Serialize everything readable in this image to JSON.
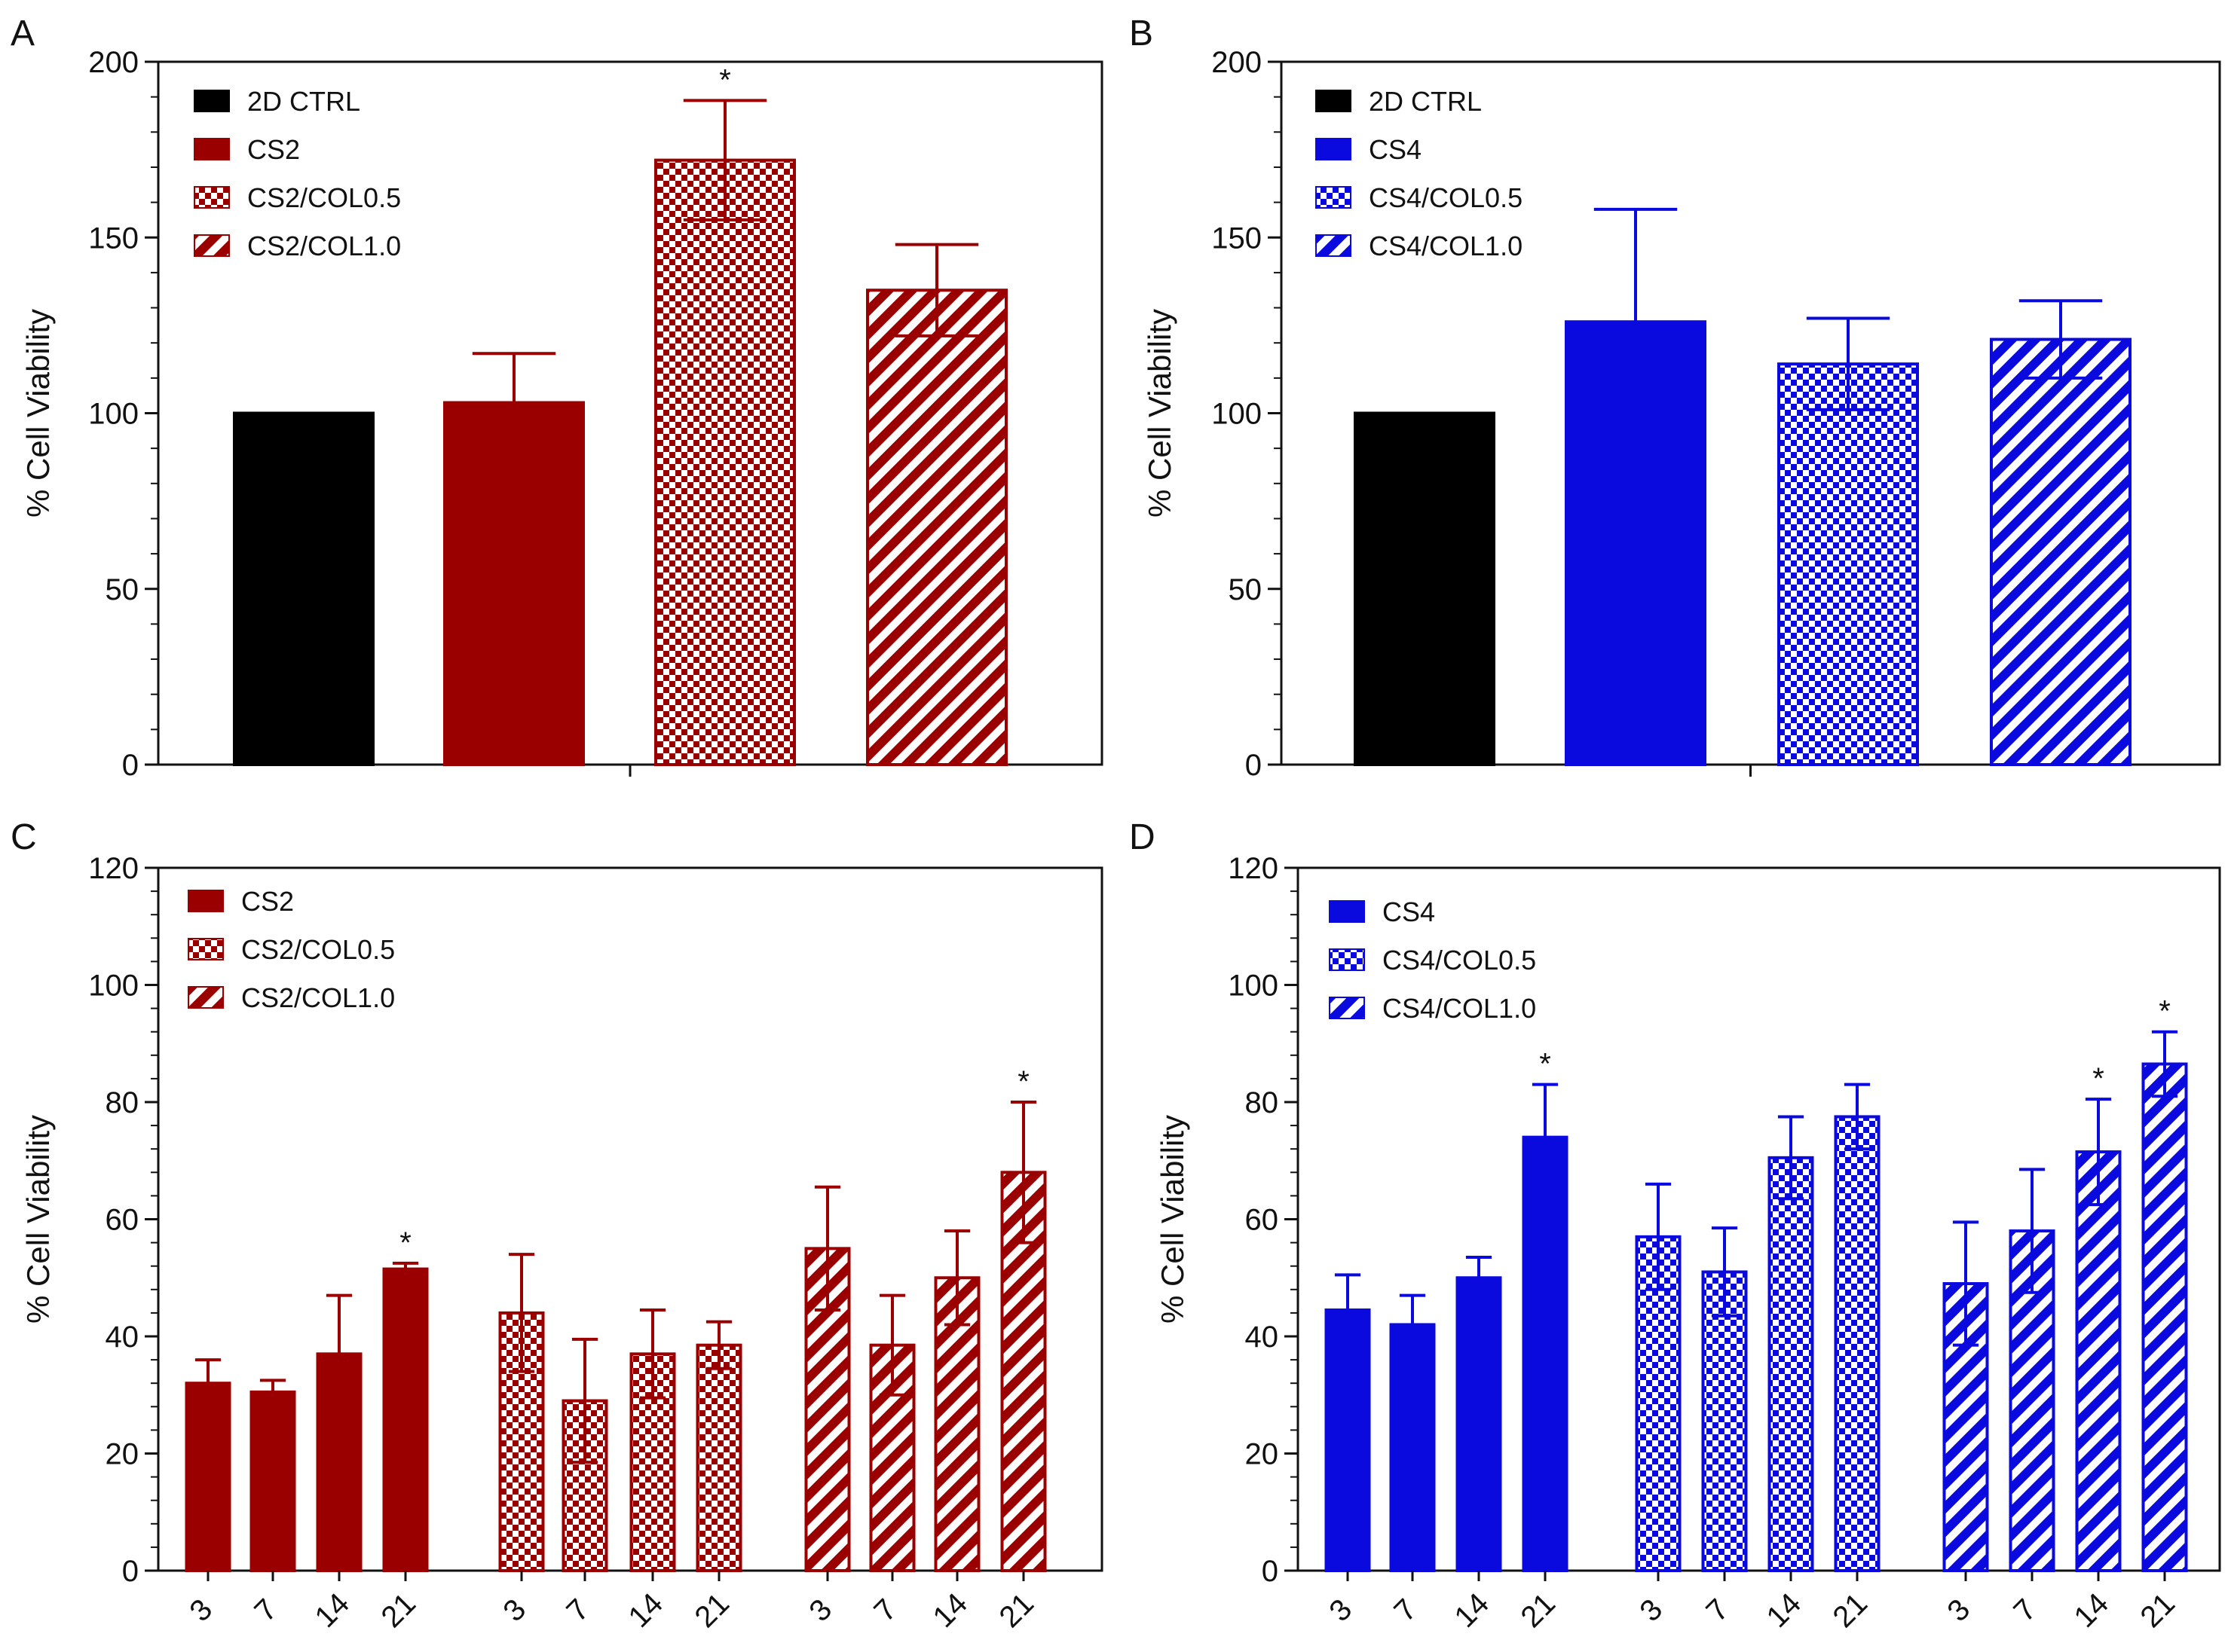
{
  "colors": {
    "ctrl": "#000000",
    "cs2": "#9b0000",
    "cs4": "#0a0adf",
    "background": "#ffffff"
  },
  "chart_data": [
    {
      "panel": "A",
      "type": "bar",
      "ylabel": "% Cell Viability",
      "ylim": [
        0,
        200
      ],
      "yticks": [
        0,
        50,
        100,
        150,
        200
      ],
      "legend_position": "top-left",
      "series": [
        {
          "name": "2D CTRL",
          "value": 100,
          "error": 0,
          "pattern": "solid",
          "color": "#000000",
          "sig": ""
        },
        {
          "name": "CS2",
          "value": 103,
          "error": 14,
          "pattern": "solid",
          "color": "#9b0000",
          "sig": ""
        },
        {
          "name": "CS2/COL0.5",
          "value": 172,
          "error": 17,
          "pattern": "checker",
          "color": "#9b0000",
          "sig": "*"
        },
        {
          "name": "CS2/COL1.0",
          "value": 135,
          "error": 13,
          "pattern": "stripe",
          "color": "#9b0000",
          "sig": ""
        }
      ]
    },
    {
      "panel": "B",
      "type": "bar",
      "ylabel": "% Cell Viability",
      "ylim": [
        0,
        200
      ],
      "yticks": [
        0,
        50,
        100,
        150,
        200
      ],
      "legend_position": "top-left",
      "series": [
        {
          "name": "2D CTRL",
          "value": 100,
          "error": 0,
          "pattern": "solid",
          "color": "#000000",
          "sig": ""
        },
        {
          "name": "CS4",
          "value": 126,
          "error": 32,
          "pattern": "solid",
          "color": "#0a0adf",
          "sig": ""
        },
        {
          "name": "CS4/COL0.5",
          "value": 114,
          "error": 13,
          "pattern": "checker",
          "color": "#0a0adf",
          "sig": ""
        },
        {
          "name": "CS4/COL1.0",
          "value": 121,
          "error": 11,
          "pattern": "stripe",
          "color": "#0a0adf",
          "sig": ""
        }
      ]
    },
    {
      "panel": "C",
      "type": "bar",
      "ylabel": "% Cell Viability",
      "ylim": [
        0,
        120
      ],
      "yticks": [
        0,
        20,
        40,
        60,
        80,
        100,
        120
      ],
      "categories": [
        "3",
        "7",
        "14",
        "21"
      ],
      "legend_position": "top-left",
      "series": [
        {
          "name": "CS2",
          "pattern": "solid",
          "color": "#9b0000",
          "values": [
            32,
            30.5,
            37,
            51.5
          ],
          "errors": [
            4,
            2,
            10,
            1
          ],
          "sig": [
            "",
            "",
            "",
            "*"
          ]
        },
        {
          "name": "CS2/COL0.5",
          "pattern": "checker",
          "color": "#9b0000",
          "values": [
            44,
            29,
            37,
            38.5
          ],
          "errors": [
            10,
            10.5,
            7.5,
            4
          ],
          "sig": [
            "",
            "",
            "",
            ""
          ]
        },
        {
          "name": "CS2/COL1.0",
          "pattern": "stripe",
          "color": "#9b0000",
          "values": [
            55,
            38.5,
            50,
            68
          ],
          "errors": [
            10.5,
            8.5,
            8,
            12
          ],
          "sig": [
            "",
            "",
            "",
            "*"
          ]
        }
      ]
    },
    {
      "panel": "D",
      "type": "bar",
      "ylabel": "% Cell Viability",
      "ylim": [
        0,
        120
      ],
      "yticks": [
        0,
        20,
        40,
        60,
        80,
        100,
        120
      ],
      "categories": [
        "3",
        "7",
        "14",
        "21"
      ],
      "legend_position": "top-left",
      "series": [
        {
          "name": "CS4",
          "pattern": "solid",
          "color": "#0a0adf",
          "values": [
            44.5,
            42,
            50,
            74
          ],
          "errors": [
            6,
            5,
            3.5,
            9
          ],
          "sig": [
            "",
            "",
            "",
            "*"
          ]
        },
        {
          "name": "CS4/COL0.5",
          "pattern": "checker",
          "color": "#0a0adf",
          "values": [
            57,
            51,
            70.5,
            77.5
          ],
          "errors": [
            9,
            7.5,
            7,
            5.5
          ],
          "sig": [
            "",
            "",
            "",
            ""
          ]
        },
        {
          "name": "CS4/COL1.0",
          "pattern": "stripe",
          "color": "#0a0adf",
          "values": [
            49,
            58,
            71.5,
            86.5
          ],
          "errors": [
            10.5,
            10.5,
            9,
            5.5
          ],
          "sig": [
            "",
            "",
            "*",
            "*"
          ]
        }
      ]
    }
  ]
}
